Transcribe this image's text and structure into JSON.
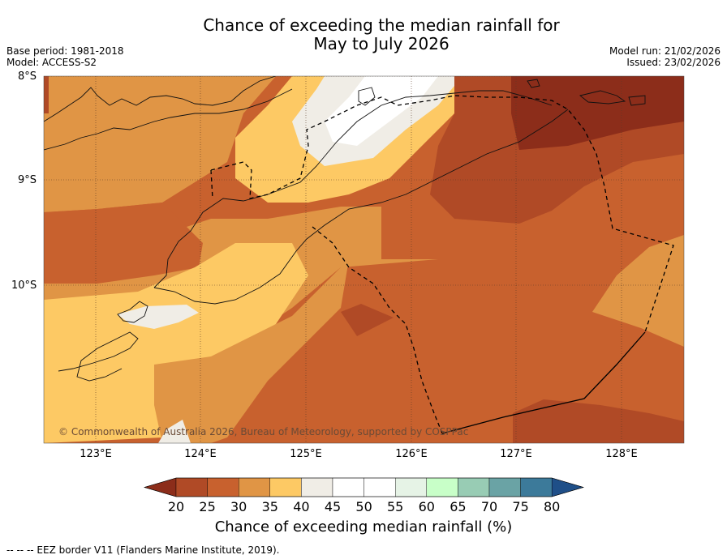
{
  "title": {
    "line1": "Chance of exceeding the median rainfall for",
    "line2": "May to July 2026"
  },
  "header": {
    "base_period": "Base period: 1981-2018",
    "model": "Model: ACCESS-S2",
    "model_run": "Model run: 21/02/2026",
    "issued": "Issued: 23/02/2026"
  },
  "map": {
    "lat_labels": [
      "8°S",
      "9°S",
      "10°S"
    ],
    "lon_labels": [
      "123°E",
      "124°E",
      "125°E",
      "126°E",
      "127°E",
      "128°E"
    ],
    "credit": "© Commonwealth of Australia 2026, Bureau of Meteorology, supported by COSPPac"
  },
  "colorbar": {
    "ticks": [
      "20",
      "25",
      "30",
      "35",
      "40",
      "45",
      "50",
      "55",
      "60",
      "65",
      "70",
      "75",
      "80"
    ],
    "colors": [
      "#8c2d1a",
      "#b04a26",
      "#c8612e",
      "#e09545",
      "#fdc964",
      "#f0ede6",
      "#ffffff",
      "#ffffff",
      "#e6f3e6",
      "#c8ffc8",
      "#98ccb4",
      "#6aa3a5",
      "#3c7a9a",
      "#1f4f88"
    ],
    "label": "Chance of exceeding median rainfall (%)"
  },
  "footer": {
    "eez_note": "--  --  -- EEZ border V11 (Flanders Marine Institute, 2019)."
  }
}
